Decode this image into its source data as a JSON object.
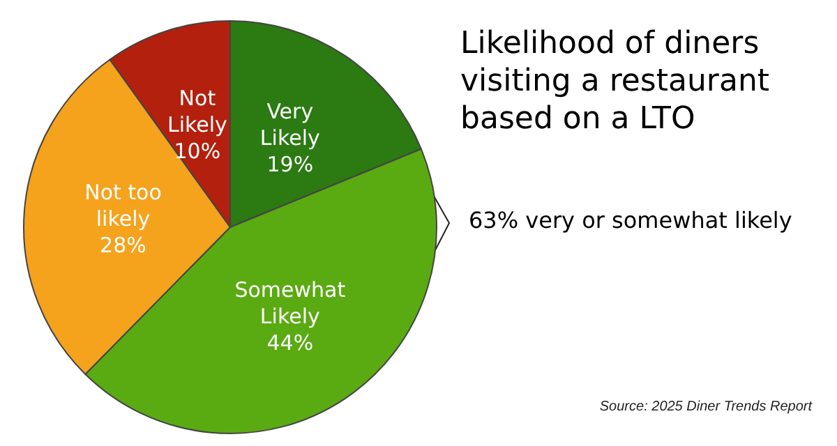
{
  "chart_data": {
    "type": "pie",
    "title": "Likelihood of diners visiting a restaurant based on a LTO",
    "categories": [
      "Very Likely",
      "Somewhat Likely",
      "Not too likely",
      "Not Likely"
    ],
    "values": [
      19,
      44,
      28,
      10
    ],
    "colors": [
      "#2b7a12",
      "#5aaa12",
      "#f5a21d",
      "#b3200e"
    ],
    "value_labels": [
      "19%",
      "44%",
      "28%",
      "10%"
    ],
    "legend": false,
    "annotations": [
      "63% very or somewhat likely",
      "Source: 2025 Diner Trends Report"
    ]
  }
}
